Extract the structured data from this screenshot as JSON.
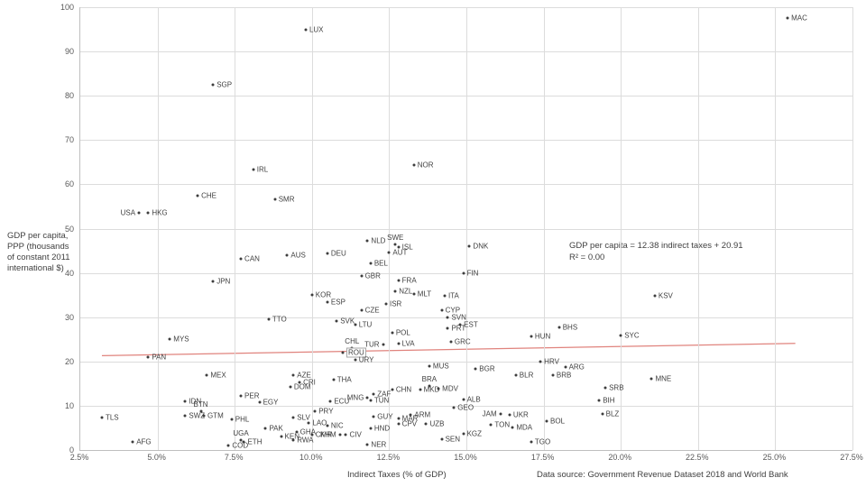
{
  "chart_data": {
    "type": "scatter",
    "xlabel": "Indirect Taxes (% of GDP)",
    "ylabel": "GDP per capita, PPP (thousands of constant 2011 international $)",
    "ylabel_lines": [
      "GDP per capita,",
      "PPP (thousands",
      "of constant 2011",
      "international $)"
    ],
    "source_note": "Data source:  Government Revenue Dataset 2018 and World Bank",
    "annotation": {
      "line1": "GDP per capita = 12.38 indirect taxes + 20.91",
      "line2": "R² = 0.00"
    },
    "xlim": [
      2.5,
      27.5
    ],
    "ylim": [
      0,
      100
    ],
    "grid": true,
    "x_tick_values": [
      2.5,
      5.0,
      7.5,
      10.0,
      12.5,
      15.0,
      17.5,
      20.0,
      22.5,
      25.0,
      27.5
    ],
    "x_tick_labels": [
      "2.5%",
      "5.0%",
      "7.5%",
      "10.0%",
      "12.5%",
      "15.0%",
      "17.5%",
      "20.0%",
      "22.5%",
      "25.0%",
      "27.5%"
    ],
    "y_tick_values": [
      0,
      10,
      20,
      30,
      40,
      50,
      60,
      70,
      80,
      90,
      100
    ],
    "y_tick_labels": [
      "0",
      "10",
      "20",
      "30",
      "40",
      "50",
      "60",
      "70",
      "80",
      "90",
      "100"
    ],
    "trendline": {
      "slope": 12.38,
      "intercept": 20.91,
      "x_start": 3.2,
      "x_end": 25.65,
      "color": "#e0837d"
    },
    "highlighted_point": "ROU",
    "points": [
      {
        "code": "MAC",
        "x": 25.4,
        "y": 97.5,
        "side": "right"
      },
      {
        "code": "LUX",
        "x": 9.8,
        "y": 95.0,
        "side": "right"
      },
      {
        "code": "SGP",
        "x": 6.8,
        "y": 82.5,
        "side": "right"
      },
      {
        "code": "NOR",
        "x": 13.3,
        "y": 64.4,
        "side": "right"
      },
      {
        "code": "IRL",
        "x": 8.1,
        "y": 63.3,
        "side": "right"
      },
      {
        "code": "CHE",
        "x": 6.3,
        "y": 57.5,
        "side": "right"
      },
      {
        "code": "SMR",
        "x": 8.8,
        "y": 56.6,
        "side": "right"
      },
      {
        "code": "USA",
        "x": 4.4,
        "y": 53.6,
        "side": "left"
      },
      {
        "code": "HKG",
        "x": 4.7,
        "y": 53.6,
        "side": "right"
      },
      {
        "code": "NLD",
        "x": 11.8,
        "y": 47.3,
        "side": "right"
      },
      {
        "code": "SWE",
        "x": 12.7,
        "y": 46.5,
        "side": "above"
      },
      {
        "code": "DNK",
        "x": 15.1,
        "y": 46.0,
        "side": "right"
      },
      {
        "code": "ISL",
        "x": 12.8,
        "y": 45.8,
        "side": "right"
      },
      {
        "code": "AUT",
        "x": 12.5,
        "y": 44.7,
        "side": "right"
      },
      {
        "code": "DEU",
        "x": 10.5,
        "y": 44.3,
        "side": "right"
      },
      {
        "code": "AUS",
        "x": 9.2,
        "y": 44.0,
        "side": "right"
      },
      {
        "code": "CAN",
        "x": 7.7,
        "y": 43.2,
        "side": "right"
      },
      {
        "code": "BEL",
        "x": 11.9,
        "y": 42.1,
        "side": "right"
      },
      {
        "code": "FIN",
        "x": 14.9,
        "y": 39.9,
        "side": "right"
      },
      {
        "code": "GBR",
        "x": 11.6,
        "y": 39.4,
        "side": "right"
      },
      {
        "code": "FRA",
        "x": 12.8,
        "y": 38.2,
        "side": "right"
      },
      {
        "code": "JPN",
        "x": 6.8,
        "y": 38.1,
        "side": "right"
      },
      {
        "code": "NZL",
        "x": 12.7,
        "y": 35.9,
        "side": "right"
      },
      {
        "code": "MLT",
        "x": 13.3,
        "y": 35.2,
        "side": "right"
      },
      {
        "code": "KOR",
        "x": 10.0,
        "y": 35.0,
        "side": "right"
      },
      {
        "code": "KSV",
        "x": 21.1,
        "y": 34.9,
        "side": "right"
      },
      {
        "code": "ITA",
        "x": 14.3,
        "y": 34.8,
        "side": "right"
      },
      {
        "code": "ESP",
        "x": 10.5,
        "y": 33.3,
        "side": "right"
      },
      {
        "code": "ISR",
        "x": 12.4,
        "y": 32.9,
        "side": "right"
      },
      {
        "code": "CZE",
        "x": 11.6,
        "y": 31.5,
        "side": "right"
      },
      {
        "code": "CYP",
        "x": 14.2,
        "y": 31.5,
        "side": "right"
      },
      {
        "code": "SVN",
        "x": 14.4,
        "y": 30.0,
        "side": "right"
      },
      {
        "code": "TTO",
        "x": 8.6,
        "y": 29.6,
        "side": "right"
      },
      {
        "code": "SVK",
        "x": 10.8,
        "y": 29.2,
        "side": "right"
      },
      {
        "code": "LTU",
        "x": 11.4,
        "y": 28.3,
        "side": "right"
      },
      {
        "code": "EST",
        "x": 14.8,
        "y": 28.3,
        "side": "right"
      },
      {
        "code": "BHS",
        "x": 18.0,
        "y": 27.8,
        "side": "right"
      },
      {
        "code": "PRT",
        "x": 14.4,
        "y": 27.4,
        "side": "right"
      },
      {
        "code": "POL",
        "x": 12.6,
        "y": 26.4,
        "side": "right"
      },
      {
        "code": "SYC",
        "x": 20.0,
        "y": 25.9,
        "side": "right"
      },
      {
        "code": "HUN",
        "x": 17.1,
        "y": 25.7,
        "side": "right"
      },
      {
        "code": "MYS",
        "x": 5.4,
        "y": 25.0,
        "side": "right"
      },
      {
        "code": "GRC",
        "x": 14.5,
        "y": 24.4,
        "side": "right"
      },
      {
        "code": "LVA",
        "x": 12.8,
        "y": 24.0,
        "side": "right"
      },
      {
        "code": "TUR",
        "x": 12.3,
        "y": 23.9,
        "side": "left"
      },
      {
        "code": "CHL",
        "x": 11.3,
        "y": 23.0,
        "side": "above"
      },
      {
        "code": "ROU",
        "x": 11.0,
        "y": 22.0,
        "side": "right",
        "boxed": true
      },
      {
        "code": "PAN",
        "x": 4.7,
        "y": 20.9,
        "side": "right"
      },
      {
        "code": "URY",
        "x": 11.4,
        "y": 20.3,
        "side": "right"
      },
      {
        "code": "HRV",
        "x": 17.4,
        "y": 19.9,
        "side": "right"
      },
      {
        "code": "MUS",
        "x": 13.8,
        "y": 19.0,
        "side": "right"
      },
      {
        "code": "ARG",
        "x": 18.2,
        "y": 18.7,
        "side": "right"
      },
      {
        "code": "BGR",
        "x": 15.3,
        "y": 18.3,
        "side": "right"
      },
      {
        "code": "MEX",
        "x": 6.6,
        "y": 17.0,
        "side": "right"
      },
      {
        "code": "AZE",
        "x": 9.4,
        "y": 16.9,
        "side": "right"
      },
      {
        "code": "BLR",
        "x": 16.6,
        "y": 16.9,
        "side": "right"
      },
      {
        "code": "BRB",
        "x": 17.8,
        "y": 17.0,
        "side": "right"
      },
      {
        "code": "MNE",
        "x": 21.0,
        "y": 16.0,
        "side": "right"
      },
      {
        "code": "THA",
        "x": 10.7,
        "y": 15.8,
        "side": "right"
      },
      {
        "code": "CRI",
        "x": 9.6,
        "y": 15.3,
        "side": "right"
      },
      {
        "code": "BRA",
        "x": 13.8,
        "y": 14.5,
        "side": "above"
      },
      {
        "code": "DOM",
        "x": 9.3,
        "y": 14.2,
        "side": "right"
      },
      {
        "code": "SRB",
        "x": 19.5,
        "y": 14.0,
        "side": "right"
      },
      {
        "code": "MDV",
        "x": 14.1,
        "y": 13.8,
        "side": "right"
      },
      {
        "code": "CHN",
        "x": 12.6,
        "y": 13.6,
        "side": "right"
      },
      {
        "code": "MKD",
        "x": 13.5,
        "y": 13.6,
        "side": "right"
      },
      {
        "code": "ZAF",
        "x": 12.0,
        "y": 12.6,
        "side": "right"
      },
      {
        "code": "PER",
        "x": 7.7,
        "y": 12.2,
        "side": "right"
      },
      {
        "code": "MNG",
        "x": 11.8,
        "y": 11.8,
        "side": "left"
      },
      {
        "code": "ALB",
        "x": 14.9,
        "y": 11.4,
        "side": "right"
      },
      {
        "code": "BIH",
        "x": 19.3,
        "y": 11.3,
        "side": "right"
      },
      {
        "code": "TUN",
        "x": 11.9,
        "y": 11.1,
        "side": "right"
      },
      {
        "code": "IDN",
        "x": 5.9,
        "y": 11.0,
        "side": "right"
      },
      {
        "code": "ECU",
        "x": 10.6,
        "y": 10.9,
        "side": "right"
      },
      {
        "code": "EGY",
        "x": 8.3,
        "y": 10.7,
        "side": "right"
      },
      {
        "code": "GEO",
        "x": 14.6,
        "y": 9.5,
        "side": "right"
      },
      {
        "code": "BTN",
        "x": 6.4,
        "y": 8.8,
        "side": "above"
      },
      {
        "code": "PRY",
        "x": 10.1,
        "y": 8.8,
        "side": "right"
      },
      {
        "code": "JAM",
        "x": 16.1,
        "y": 8.2,
        "side": "left"
      },
      {
        "code": "BLZ",
        "x": 19.4,
        "y": 8.1,
        "side": "right"
      },
      {
        "code": "ARM",
        "x": 13.2,
        "y": 8.0,
        "side": "right"
      },
      {
        "code": "UKR",
        "x": 16.4,
        "y": 7.9,
        "side": "right"
      },
      {
        "code": "SWZ",
        "x": 5.9,
        "y": 7.8,
        "side": "right"
      },
      {
        "code": "GTM",
        "x": 6.5,
        "y": 7.7,
        "side": "right"
      },
      {
        "code": "GUY",
        "x": 12.0,
        "y": 7.6,
        "side": "right"
      },
      {
        "code": "TLS",
        "x": 3.2,
        "y": 7.3,
        "side": "right"
      },
      {
        "code": "SLV",
        "x": 9.4,
        "y": 7.3,
        "side": "right"
      },
      {
        "code": "MAR",
        "x": 12.8,
        "y": 7.1,
        "side": "right"
      },
      {
        "code": "PHL",
        "x": 7.4,
        "y": 6.9,
        "side": "right"
      },
      {
        "code": "BOL",
        "x": 17.6,
        "y": 6.5,
        "side": "right"
      },
      {
        "code": "LAO",
        "x": 9.9,
        "y": 6.2,
        "side": "right"
      },
      {
        "code": "CPV",
        "x": 12.8,
        "y": 6.0,
        "side": "right"
      },
      {
        "code": "UZB",
        "x": 13.7,
        "y": 6.0,
        "side": "right"
      },
      {
        "code": "TON",
        "x": 15.8,
        "y": 5.8,
        "side": "right"
      },
      {
        "code": "NIC",
        "x": 10.5,
        "y": 5.4,
        "side": "right"
      },
      {
        "code": "MDA",
        "x": 16.5,
        "y": 5.1,
        "side": "right"
      },
      {
        "code": "PAK",
        "x": 8.5,
        "y": 4.9,
        "side": "right"
      },
      {
        "code": "HND",
        "x": 11.9,
        "y": 4.9,
        "side": "right"
      },
      {
        "code": "GHA",
        "x": 9.5,
        "y": 4.1,
        "side": "right"
      },
      {
        "code": "KGZ",
        "x": 14.9,
        "y": 3.6,
        "side": "right"
      },
      {
        "code": "CMR",
        "x": 10.0,
        "y": 3.4,
        "side": "right"
      },
      {
        "code": "KHM",
        "x": 10.9,
        "y": 3.4,
        "side": "left"
      },
      {
        "code": "CIV",
        "x": 11.1,
        "y": 3.4,
        "side": "right"
      },
      {
        "code": "KEN",
        "x": 9.0,
        "y": 3.0,
        "side": "right"
      },
      {
        "code": "SEN",
        "x": 14.2,
        "y": 2.4,
        "side": "right"
      },
      {
        "code": "RWA",
        "x": 9.4,
        "y": 2.2,
        "side": "right"
      },
      {
        "code": "UGA",
        "x": 7.7,
        "y": 2.3,
        "side": "above"
      },
      {
        "code": "ETH",
        "x": 7.8,
        "y": 1.9,
        "side": "right"
      },
      {
        "code": "AFG",
        "x": 4.2,
        "y": 1.9,
        "side": "right"
      },
      {
        "code": "TGO",
        "x": 17.1,
        "y": 1.8,
        "side": "right"
      },
      {
        "code": "NER",
        "x": 11.8,
        "y": 1.2,
        "side": "right"
      },
      {
        "code": "COD",
        "x": 7.3,
        "y": 1.0,
        "side": "right"
      }
    ],
    "colors": {
      "dot": "#3d3d3d",
      "gridline": "#dcdcdc",
      "axis_line": "#bfbfbf",
      "tick_text": "#595959",
      "label_text": "#404040",
      "trend_line": "#e0837d"
    }
  }
}
